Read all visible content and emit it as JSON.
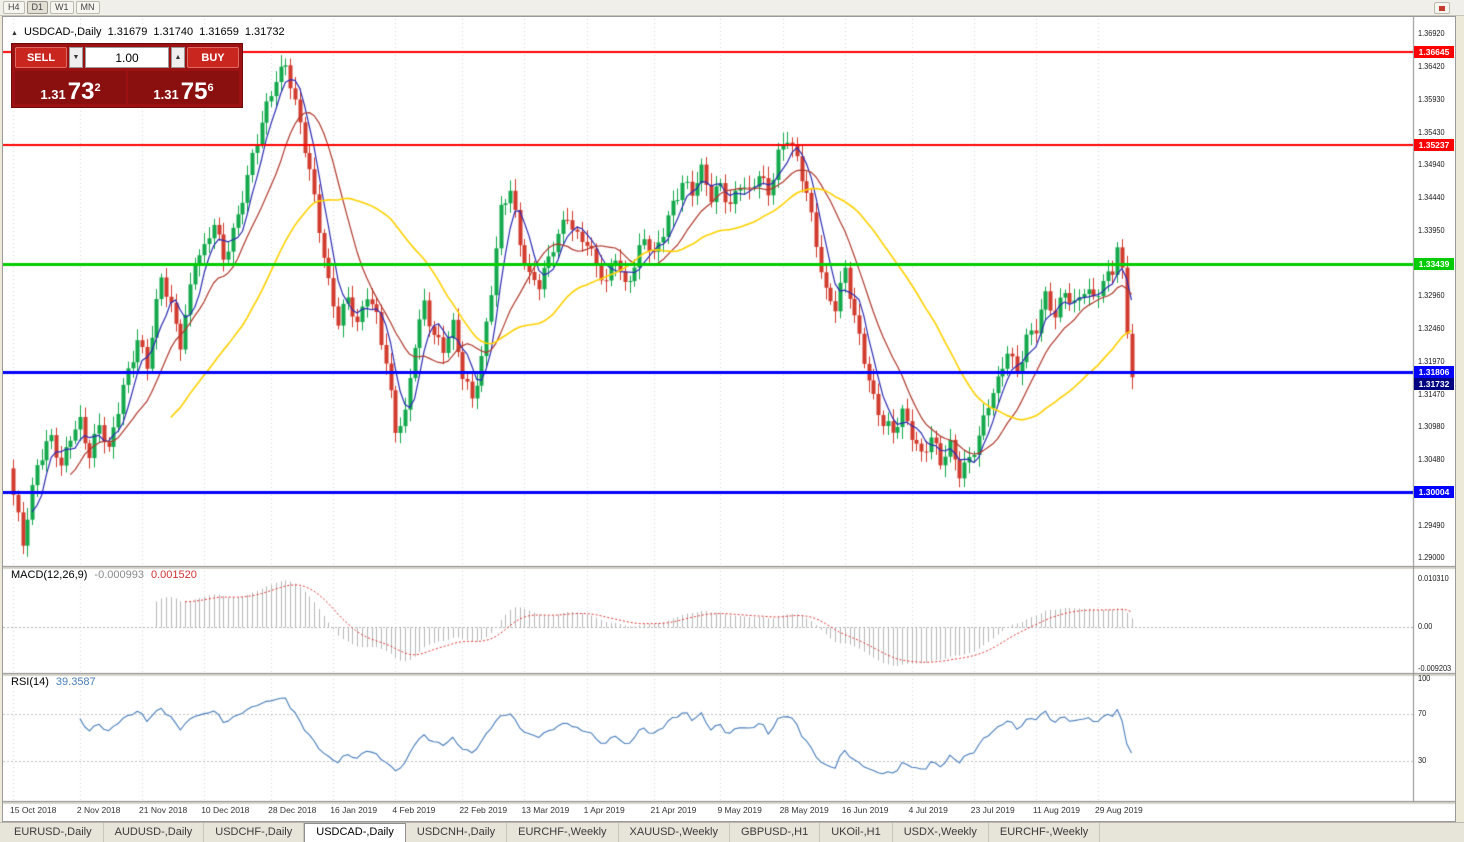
{
  "toolbar": {
    "timeframes": [
      {
        "label": "H4",
        "active": false
      },
      {
        "label": "D1",
        "active": true
      },
      {
        "label": "W1",
        "active": false
      },
      {
        "label": "MN",
        "active": false
      }
    ]
  },
  "chart": {
    "title_marker": "▲",
    "symbol_title": "USDCAD-,Daily",
    "ohlc": {
      "open": "1.31679",
      "high": "1.31740",
      "low": "1.31659",
      "close": "1.31732"
    },
    "trade_panel": {
      "sell_label": "SELL",
      "buy_label": "BUY",
      "volume": "1.00",
      "spin_down": "▼",
      "spin_up": "▲",
      "sell_price": "1.31",
      "sell_pips": "73",
      "sell_sup": "2",
      "buy_price": "1.31",
      "buy_pips": "75",
      "buy_sup": "6"
    }
  },
  "indicators": {
    "macd": {
      "label": "MACD(12,26,9)",
      "value_main": "-0.000993",
      "value_signal": "0.001520",
      "axis": [
        "0.010310",
        "0.00",
        "-0.009203"
      ]
    },
    "rsi": {
      "label": "RSI(14)",
      "value": "39.3587",
      "axis": [
        "100",
        "70",
        "30"
      ]
    }
  },
  "chart_data": {
    "type": "candlestick",
    "title": "USDCAD-,Daily",
    "symbol": "USDCAD",
    "timeframe": "Daily",
    "current_price": 1.31732,
    "visible_range": {
      "price_min": 1.29,
      "price_max": 1.3692
    },
    "y_axis_labels": [
      "1.36920",
      "1.36420",
      "1.35930",
      "1.35430",
      "1.34940",
      "1.34440",
      "1.33950",
      "1.33460",
      "1.32960",
      "1.32460",
      "1.31970",
      "1.31470",
      "1.30980",
      "1.30480",
      "1.29490",
      "1.29000"
    ],
    "x_labels": [
      {
        "i": 0,
        "t": "15 Oct 2018"
      },
      {
        "i": 14,
        "t": "2 Nov 2018"
      },
      {
        "i": 27,
        "t": "21 Nov 2018"
      },
      {
        "i": 40,
        "t": "10 Dec 2018"
      },
      {
        "i": 54,
        "t": "28 Dec 2018"
      },
      {
        "i": 67,
        "t": "16 Jan 2019"
      },
      {
        "i": 80,
        "t": "4 Feb 2019"
      },
      {
        "i": 94,
        "t": "22 Feb 2019"
      },
      {
        "i": 107,
        "t": "13 Mar 2019"
      },
      {
        "i": 120,
        "t": "1 Apr 2019"
      },
      {
        "i": 134,
        "t": "21 Apr 2019"
      },
      {
        "i": 148,
        "t": "9 May 2019"
      },
      {
        "i": 161,
        "t": "28 May 2019"
      },
      {
        "i": 174,
        "t": "16 Jun 2019"
      },
      {
        "i": 188,
        "t": "4 Jul 2019"
      },
      {
        "i": 201,
        "t": "23 Jul 2019"
      },
      {
        "i": 214,
        "t": "11 Aug 2019"
      },
      {
        "i": 227,
        "t": "29 Aug 2019"
      }
    ],
    "n_candles": 235,
    "close_anchors": [
      [
        0,
        1.299
      ],
      [
        2,
        1.2925
      ],
      [
        5,
        1.3048
      ],
      [
        8,
        1.308
      ],
      [
        10,
        1.303
      ],
      [
        12,
        1.3085
      ],
      [
        14,
        1.311
      ],
      [
        16,
        1.306
      ],
      [
        18,
        1.31
      ],
      [
        20,
        1.3055
      ],
      [
        23,
        1.316
      ],
      [
        26,
        1.3235
      ],
      [
        28,
        1.319
      ],
      [
        31,
        1.332
      ],
      [
        33,
        1.328
      ],
      [
        35,
        1.323
      ],
      [
        38,
        1.335
      ],
      [
        40,
        1.336
      ],
      [
        42,
        1.3405
      ],
      [
        44,
        1.3355
      ],
      [
        47,
        1.342
      ],
      [
        50,
        1.35
      ],
      [
        52,
        1.3555
      ],
      [
        55,
        1.363
      ],
      [
        57,
        1.365
      ],
      [
        58,
        1.362
      ],
      [
        60,
        1.355
      ],
      [
        62,
        1.348
      ],
      [
        64,
        1.34
      ],
      [
        66,
        1.332
      ],
      [
        68,
        1.326
      ],
      [
        70,
        1.329
      ],
      [
        72,
        1.3245
      ],
      [
        74,
        1.33
      ],
      [
        76,
        1.327
      ],
      [
        78,
        1.32
      ],
      [
        80,
        1.309
      ],
      [
        82,
        1.311
      ],
      [
        84,
        1.3225
      ],
      [
        86,
        1.329
      ],
      [
        88,
        1.324
      ],
      [
        90,
        1.3215
      ],
      [
        92,
        1.3245
      ],
      [
        94,
        1.3175
      ],
      [
        96,
        1.3145
      ],
      [
        98,
        1.3205
      ],
      [
        100,
        1.3305
      ],
      [
        102,
        1.342
      ],
      [
        104,
        1.3455
      ],
      [
        106,
        1.338
      ],
      [
        108,
        1.333
      ],
      [
        110,
        1.3315
      ],
      [
        112,
        1.3345
      ],
      [
        114,
        1.3385
      ],
      [
        116,
        1.342
      ],
      [
        118,
        1.339
      ],
      [
        120,
        1.338
      ],
      [
        122,
        1.3335
      ],
      [
        124,
        1.331
      ],
      [
        126,
        1.336
      ],
      [
        128,
        1.3315
      ],
      [
        130,
        1.3345
      ],
      [
        132,
        1.338
      ],
      [
        134,
        1.335
      ],
      [
        136,
        1.3395
      ],
      [
        138,
        1.344
      ],
      [
        140,
        1.347
      ],
      [
        142,
        1.345
      ],
      [
        144,
        1.348
      ],
      [
        146,
        1.3445
      ],
      [
        148,
        1.347
      ],
      [
        150,
        1.3435
      ],
      [
        152,
        1.3465
      ],
      [
        154,
        1.3445
      ],
      [
        156,
        1.348
      ],
      [
        158,
        1.3455
      ],
      [
        160,
        1.3515
      ],
      [
        162,
        1.3535
      ],
      [
        164,
        1.3495
      ],
      [
        166,
        1.345
      ],
      [
        168,
        1.338
      ],
      [
        170,
        1.3305
      ],
      [
        172,
        1.328
      ],
      [
        174,
        1.333
      ],
      [
        176,
        1.326
      ],
      [
        178,
        1.3205
      ],
      [
        180,
        1.3145
      ],
      [
        182,
        1.3105
      ],
      [
        184,
        1.3085
      ],
      [
        186,
        1.3115
      ],
      [
        188,
        1.309
      ],
      [
        190,
        1.306
      ],
      [
        192,
        1.3085
      ],
      [
        194,
        1.304
      ],
      [
        196,
        1.3065
      ],
      [
        198,
        1.303
      ],
      [
        200,
        1.3055
      ],
      [
        202,
        1.3085
      ],
      [
        204,
        1.313
      ],
      [
        206,
        1.316
      ],
      [
        208,
        1.3215
      ],
      [
        210,
        1.3185
      ],
      [
        212,
        1.3235
      ],
      [
        214,
        1.3245
      ],
      [
        216,
        1.329
      ],
      [
        218,
        1.3265
      ],
      [
        220,
        1.331
      ],
      [
        222,
        1.3285
      ],
      [
        224,
        1.3305
      ],
      [
        226,
        1.3285
      ],
      [
        228,
        1.3315
      ],
      [
        230,
        1.334
      ],
      [
        231,
        1.3378
      ],
      [
        232,
        1.3335
      ],
      [
        233,
        1.3245
      ],
      [
        234,
        1.31732
      ]
    ],
    "note": "closes are linear-interpolated from anchors with deterministic wiggle; OHLC synthesized around closes",
    "horizontal_lines": [
      {
        "price": 1.36645,
        "label": "1.36645",
        "color": "#ff0000",
        "width": 2
      },
      {
        "price": 1.35237,
        "label": "1.35237",
        "color": "#ff0000",
        "width": 2
      },
      {
        "price": 1.33439,
        "label": "1.33439",
        "color": "#00cc00",
        "width": 3
      },
      {
        "price": 1.31806,
        "label": "1.31806",
        "color": "#0000ff",
        "width": 3
      },
      {
        "price": 1.30004,
        "label": "1.30004",
        "color": "#0000ff",
        "width": 3
      }
    ],
    "moving_averages": [
      {
        "period": 5,
        "color": "#2d2db4"
      },
      {
        "period": 13,
        "color": "#b03a2e"
      },
      {
        "period": 34,
        "color": "#ffd200"
      }
    ],
    "macd": {
      "fast": 12,
      "slow": 26,
      "signal": 9,
      "main_current": -0.000993,
      "signal_current": 0.00152,
      "axis_max": 0.01031,
      "axis_min": -0.009203
    },
    "rsi": {
      "period": 14,
      "current": 39.3587,
      "levels": [
        70,
        30
      ],
      "axis_max": 100
    },
    "colors": {
      "bull": "#13a94c",
      "bear": "#d23b2e",
      "grid": "#d8d8d8",
      "macd_hist": "#b8b8b8",
      "macd_signal": "#e03a3a",
      "rsi_line": "#4a7ebb",
      "current_badge": "#000080"
    }
  },
  "tabs": [
    {
      "label": "EURUSD-,Daily",
      "active": false
    },
    {
      "label": "AUDUSD-,Daily",
      "active": false
    },
    {
      "label": "USDCHF-,Daily",
      "active": false
    },
    {
      "label": "USDCAD-,Daily",
      "active": true
    },
    {
      "label": "USDCNH-,Daily",
      "active": false
    },
    {
      "label": "EURCHF-,Weekly",
      "active": false
    },
    {
      "label": "XAUUSD-,Weekly",
      "active": false
    },
    {
      "label": "GBPUSD-,H1",
      "active": false
    },
    {
      "label": "UKOil-,H1",
      "active": false
    },
    {
      "label": "USDX-,Weekly",
      "active": false
    },
    {
      "label": "EURCHF-,Weekly",
      "active": false
    }
  ]
}
